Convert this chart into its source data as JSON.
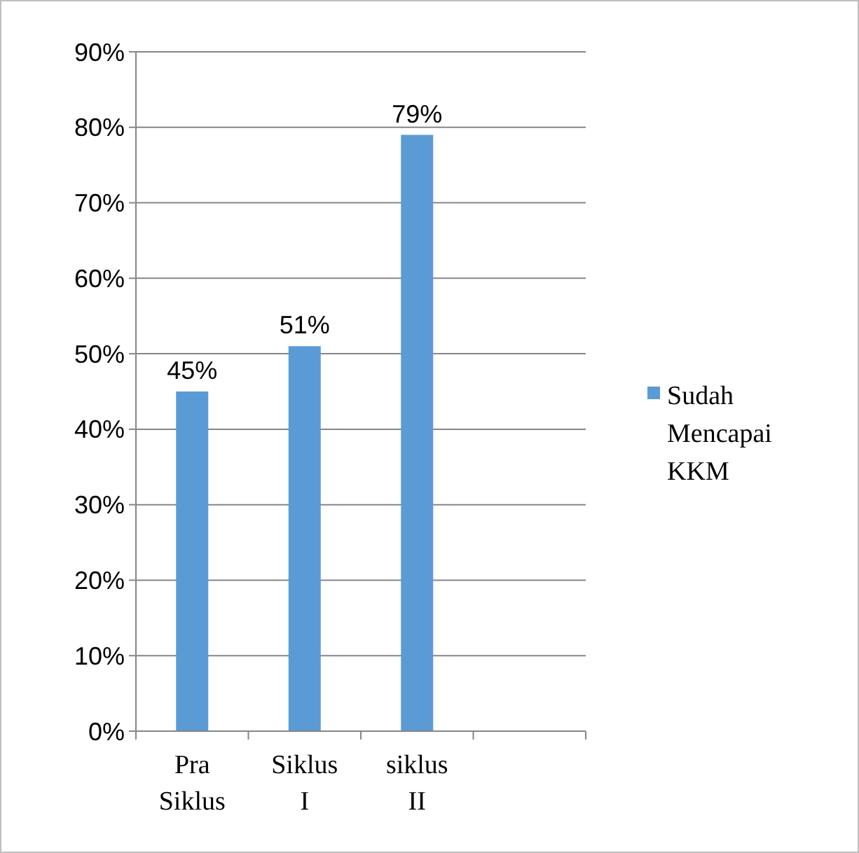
{
  "chart_data": {
    "type": "bar",
    "categories": [
      "Pra Siklus",
      "Siklus I",
      "siklus II",
      null
    ],
    "series": [
      {
        "name": "Sudah Mencapai KKM",
        "color": "#5b9bd5",
        "values": [
          45,
          51,
          79,
          null
        ],
        "value_labels": [
          "45%",
          "51%",
          "79%",
          null
        ]
      }
    ],
    "ylim": [
      0,
      90
    ],
    "yticks": [
      {
        "value": 0,
        "label": "0%"
      },
      {
        "value": 10,
        "label": "10%"
      },
      {
        "value": 20,
        "label": "20%"
      },
      {
        "value": 30,
        "label": "30%"
      },
      {
        "value": 40,
        "label": "40%"
      },
      {
        "value": 50,
        "label": "50%"
      },
      {
        "value": 60,
        "label": "60%"
      },
      {
        "value": 70,
        "label": "70%"
      },
      {
        "value": 80,
        "label": "80%"
      },
      {
        "value": 90,
        "label": "90%"
      }
    ],
    "grid": "y",
    "legend": "right"
  }
}
